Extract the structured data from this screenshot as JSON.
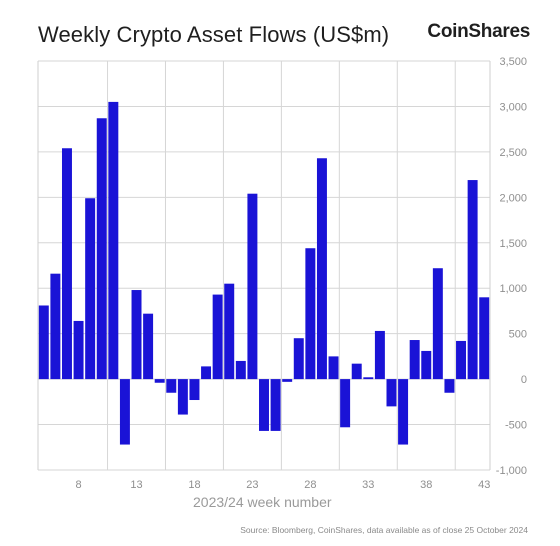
{
  "title": "Weekly Crypto Asset Flows (US$m)",
  "brand": "CoinShares",
  "source": "Source: Bloomberg, CoinShares, data available as of close 25 October 2024",
  "colors": {
    "bar": "#1a13d6",
    "grid": "#d6d6d6",
    "axis": "#cfcfcf"
  },
  "chart_data": {
    "type": "bar",
    "xlabel": "2023/24 week number",
    "ylabel": "",
    "ylim": [
      -1000,
      3500
    ],
    "yticks": [
      3500,
      3000,
      2500,
      2000,
      1500,
      1000,
      500,
      0,
      -500,
      -1000
    ],
    "ytick_labels": [
      "3,500",
      "3,000",
      "2,500",
      "2,000",
      "1,500",
      "1,000",
      "500",
      "0",
      "-500",
      "-1,000"
    ],
    "xtick_weeks": [
      8,
      13,
      18,
      23,
      28,
      33,
      38,
      43
    ],
    "grid": true,
    "weeks": [
      5,
      6,
      7,
      8,
      9,
      10,
      11,
      12,
      13,
      14,
      15,
      16,
      17,
      18,
      19,
      20,
      21,
      22,
      23,
      24,
      25,
      26,
      27,
      28,
      29,
      30,
      31,
      32,
      33,
      34,
      35,
      36,
      37,
      38,
      39,
      40,
      41,
      42,
      43
    ],
    "values": [
      810,
      1160,
      2540,
      640,
      1990,
      2870,
      3050,
      -720,
      980,
      720,
      -40,
      -150,
      -390,
      -230,
      140,
      930,
      1050,
      200,
      2040,
      -570,
      -570,
      -30,
      450,
      1440,
      2430,
      250,
      -530,
      170,
      20,
      530,
      -300,
      -720,
      430,
      310,
      1220,
      -150,
      420,
      2190,
      900
    ]
  }
}
